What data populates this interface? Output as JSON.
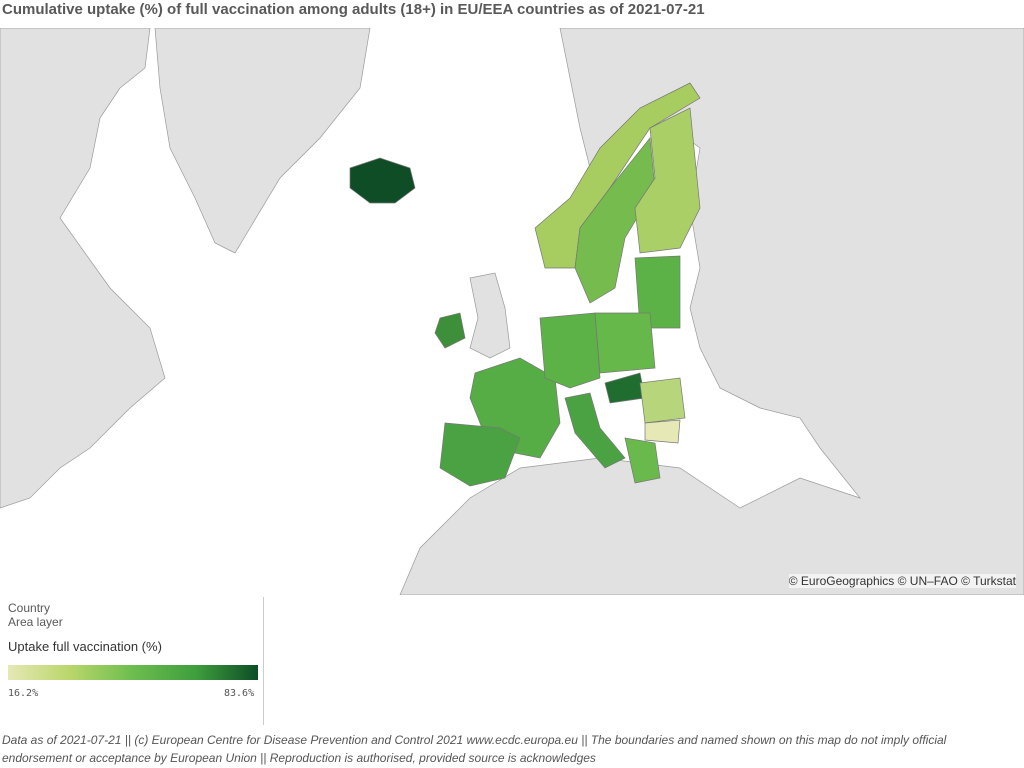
{
  "header": {
    "title": "Cumulative uptake (%) of full vaccination among adults (18+) in EU/EEA countries as of 2021-07-21"
  },
  "map": {
    "attribution": "© EuroGeographics © UN–FAO © Turkstat"
  },
  "legend": {
    "layer_title": "Country",
    "layer_subtitle": "Area layer",
    "measure": "Uptake full vaccination (%)",
    "min_label": "16.2%",
    "max_label": "83.6%"
  },
  "footer": {
    "line1": "Data as of 2021-07-21 || (c) European Centre for Disease Prevention and Control 2021 www.ecdc.europa.eu || The boundaries and named shown on this map do not imply official",
    "line2": "endorsement or acceptance by European Union || Reproduction is authorised, provided source is acknowledges"
  }
}
